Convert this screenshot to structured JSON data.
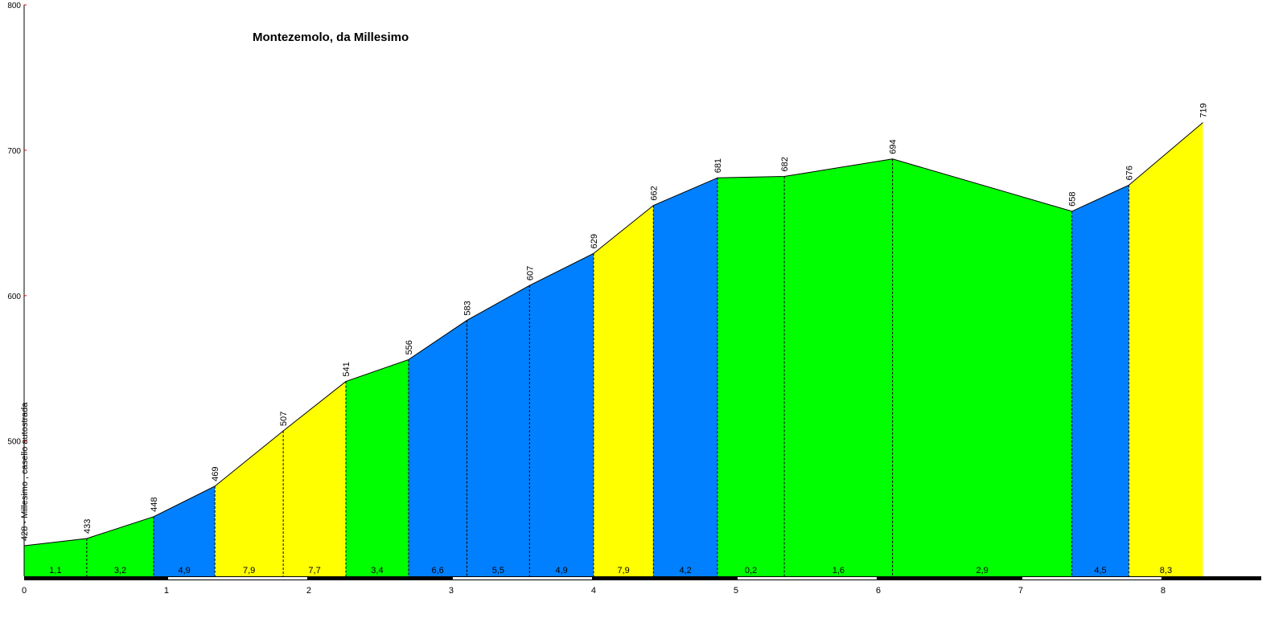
{
  "chart_data": {
    "type": "area",
    "title": "Montezemolo, da Millesimo",
    "xlabel": "",
    "ylabel": "",
    "xlim": [
      0,
      8.69
    ],
    "ylim": [
      407,
      800
    ],
    "x_ticks": [
      "0",
      "1",
      "2",
      "3",
      "4",
      "5",
      "6",
      "7",
      "8"
    ],
    "y_ticks": [
      "500",
      "600",
      "700",
      "800"
    ],
    "points": [
      {
        "km": 0,
        "alt": 428,
        "label": "428 - Millesimo , casello autostrada"
      },
      {
        "km": 0.44,
        "alt": 433,
        "label": "433"
      },
      {
        "km": 0.91,
        "alt": 448,
        "label": "448"
      },
      {
        "km": 1.34,
        "alt": 469,
        "label": "469"
      },
      {
        "km": 1.82,
        "alt": 507,
        "label": "507"
      },
      {
        "km": 2.26,
        "alt": 541,
        "label": "541"
      },
      {
        "km": 2.7,
        "alt": 556,
        "label": "556"
      },
      {
        "km": 3.11,
        "alt": 583,
        "label": "583"
      },
      {
        "km": 3.55,
        "alt": 607,
        "label": "607"
      },
      {
        "km": 4.0,
        "alt": 629,
        "label": "629"
      },
      {
        "km": 4.42,
        "alt": 662,
        "label": "662"
      },
      {
        "km": 4.87,
        "alt": 681,
        "label": "681"
      },
      {
        "km": 5.34,
        "alt": 682,
        "label": "682"
      },
      {
        "km": 6.1,
        "alt": 694,
        "label": "694"
      },
      {
        "km": 7.36,
        "alt": 658,
        "label": "658"
      },
      {
        "km": 7.76,
        "alt": 676,
        "label": "676"
      },
      {
        "km": 8.28,
        "alt": 719,
        "label": "719"
      }
    ],
    "gradients": [
      "1,1",
      "3,2",
      "4,9",
      "7,9",
      "7,7",
      "3,4",
      "6,6",
      "5,5",
      "4,9",
      "7,9",
      "4,2",
      "0,2",
      "1,6",
      "2,9",
      "4,5",
      "8,3"
    ],
    "gradient_colors": {
      "under_4": "#00ff00",
      "4_to_7": "#0080ff",
      "7_to_9": "#ffff00"
    },
    "axis_tick_color": "#ff0000"
  }
}
